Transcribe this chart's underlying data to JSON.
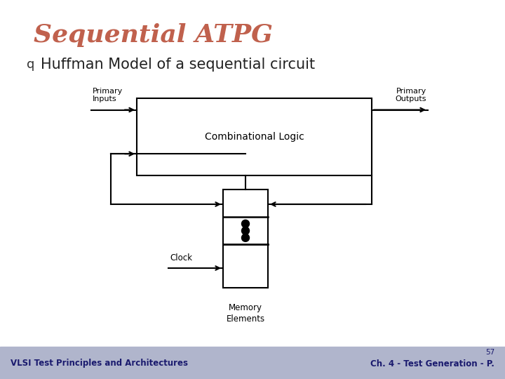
{
  "title": "Sequential ATPG",
  "title_color": "#C0614D",
  "subtitle": "Huffman Model of a sequential circuit",
  "subtitle_bullet": "q",
  "subtitle_color": "#222222",
  "bg_color": "#FFFFFF",
  "footer_bg": "#B0B5CC",
  "footer_left": "VLSI Test Principles and Architectures",
  "footer_right": "Ch. 4 - Test Generation - P.",
  "footer_page": "57",
  "footer_text_color": "#1a1a6e",
  "diagram": {
    "comb_label": "Combinational Logic",
    "mem_label": "Memory\nElements",
    "clock_label": "Clock",
    "pi_label": "Primary\nInputs",
    "po_label": "Primary\nOutputs",
    "line_color": "#000000",
    "line_width": 1.5
  }
}
